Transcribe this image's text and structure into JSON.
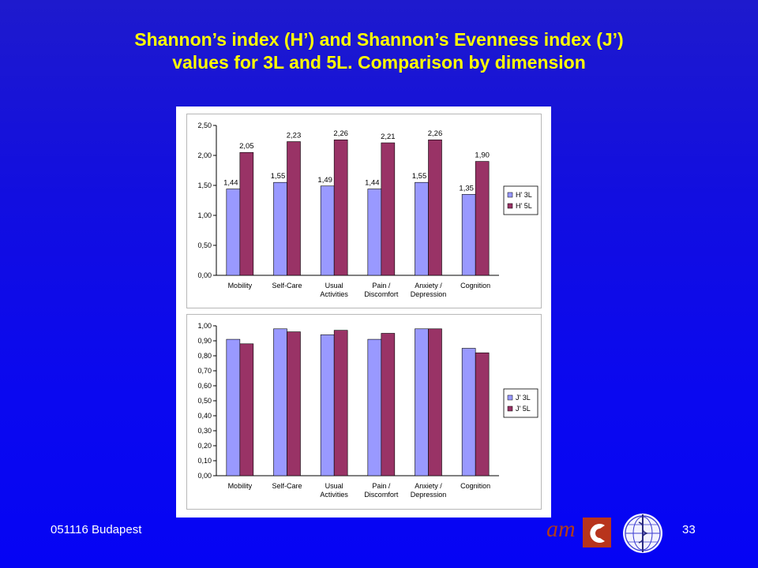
{
  "slide": {
    "title_line1": "Shannon’s index (H’) and Shannon’s Evenness index (J’)",
    "title_line2": "values for 3L and 5L. Comparison by dimension",
    "footer_left": "051116 Budapest",
    "page_number": "33",
    "logo_text": "am"
  },
  "chart_data": [
    {
      "type": "bar",
      "categories": [
        [
          "Mobility"
        ],
        [
          "Self-Care"
        ],
        [
          "Usual",
          "Activities"
        ],
        [
          "Pain /",
          "Discomfort"
        ],
        [
          "Anxiety /",
          "Depression"
        ],
        [
          "Cognition"
        ]
      ],
      "series": [
        {
          "name": "H' 3L",
          "values": [
            1.44,
            1.55,
            1.49,
            1.44,
            1.55,
            1.35
          ],
          "labels": [
            "1,44",
            "1,55",
            "1,49",
            "1,44",
            "1,55",
            "1,35"
          ],
          "color": "#9999ff"
        },
        {
          "name": "H' 5L",
          "values": [
            2.05,
            2.23,
            2.26,
            2.21,
            2.26,
            1.9
          ],
          "labels": [
            "2,05",
            "2,23",
            "2,26",
            "2,21",
            "2,26",
            "1,90"
          ],
          "color": "#993366"
        }
      ],
      "ylim": [
        0,
        2.5
      ],
      "yticks": [
        "0,00",
        "0,50",
        "1,00",
        "1,50",
        "2,00",
        "2,50"
      ],
      "grid": false,
      "legend": "right"
    },
    {
      "type": "bar",
      "categories": [
        [
          "Mobility"
        ],
        [
          "Self-Care"
        ],
        [
          "Usual",
          "Activities"
        ],
        [
          "Pain /",
          "Discomfort"
        ],
        [
          "Anxiety /",
          "Depression"
        ],
        [
          "Cognition"
        ]
      ],
      "series": [
        {
          "name": "J' 3L",
          "values": [
            0.91,
            0.98,
            0.94,
            0.91,
            0.98,
            0.85
          ],
          "color": "#9999ff"
        },
        {
          "name": "J' 5L",
          "values": [
            0.88,
            0.96,
            0.97,
            0.95,
            0.98,
            0.82
          ],
          "color": "#993366"
        }
      ],
      "ylim": [
        0,
        1.0
      ],
      "yticks": [
        "0,00",
        "0,10",
        "0,20",
        "0,30",
        "0,40",
        "0,50",
        "0,60",
        "0,70",
        "0,80",
        "0,90",
        "1,00"
      ],
      "grid": false,
      "legend": "right"
    }
  ]
}
